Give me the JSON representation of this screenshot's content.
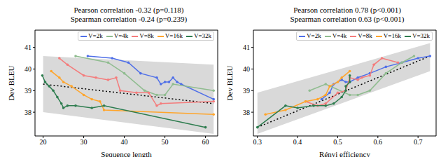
{
  "chart_data": [
    {
      "type": "line",
      "title": "Pearson correlation -0.32 (p=0.118)",
      "subtitle": "Spearman correlation -0.24 (p=0.239)",
      "x_label": "Sequence length",
      "y_label": "Dev BLEU",
      "xlim": [
        18,
        63
      ],
      "xticks": [
        20,
        30,
        40,
        50,
        60
      ],
      "ylim": [
        36.9,
        41.8
      ],
      "yticks": [
        38,
        39,
        40,
        41
      ],
      "grid": false,
      "legend": "upper right",
      "marker": "circle",
      "band": {
        "color": "#d9d9d9",
        "x": [
          20,
          62
        ],
        "lower": [
          38.0,
          37.0
        ],
        "upper": [
          40.6,
          40.2
        ]
      },
      "fit": {
        "color": "#000000",
        "line_style": "dotted",
        "x": [
          20,
          62
        ],
        "values": [
          39.3,
          38.4
        ]
      },
      "series": [
        {
          "name": "V=2k",
          "color": "#4f6fe8",
          "x": [
            31,
            37,
            41,
            44,
            48,
            49,
            50,
            51,
            52,
            53,
            54,
            62
          ],
          "values": [
            40.6,
            40.5,
            40.3,
            39.8,
            39.6,
            39.3,
            39.4,
            39.4,
            39.6,
            39.4,
            39.3,
            38.6
          ]
        },
        {
          "name": "V=4k",
          "color": "#8fbc8f",
          "x": [
            28,
            36,
            40,
            45,
            48,
            50,
            52,
            62
          ],
          "values": [
            40.6,
            40.3,
            39.8,
            39.0,
            38.8,
            38.8,
            39.3,
            39.0
          ]
        },
        {
          "name": "V=8k",
          "color": "#f47c7c",
          "x": [
            24,
            26,
            30,
            33,
            36,
            38,
            39,
            43,
            46,
            48,
            49,
            62
          ],
          "values": [
            40.5,
            40.2,
            39.7,
            39.6,
            39.5,
            39.6,
            39.0,
            38.9,
            38.9,
            38.3,
            38.4,
            38.5
          ]
        },
        {
          "name": "V=16k",
          "color": "#ffa52b",
          "x": [
            22,
            24,
            25,
            27,
            30,
            32,
            34,
            35,
            62
          ],
          "values": [
            39.9,
            39.6,
            39.4,
            39.2,
            38.8,
            38.6,
            38.5,
            38.1,
            37.9
          ]
        },
        {
          "name": "V=32k",
          "color": "#2e7d4f",
          "x": [
            19.8,
            20.5,
            21.5,
            22.5,
            23.5,
            24.5,
            25,
            26,
            28,
            32,
            35,
            60
          ],
          "values": [
            39.7,
            39.4,
            39.2,
            39.0,
            38.7,
            38.4,
            38.2,
            38.3,
            38.3,
            38.2,
            38.3,
            37.3
          ]
        }
      ]
    },
    {
      "type": "line",
      "title": "Pearson correlation 0.78 (p<0.001)",
      "subtitle": "Spearman correlation 0.63 (p<0.001)",
      "x_label": "Rényi efficiency",
      "y_label": "Dev BLEU",
      "xlim": [
        0.29,
        0.745
      ],
      "xticks": [
        0.3,
        0.4,
        0.5,
        0.6,
        0.7
      ],
      "ylim": [
        36.9,
        41.8
      ],
      "yticks": [
        38,
        39,
        40,
        41
      ],
      "grid": false,
      "legend": "upper right",
      "marker": "circle",
      "band": {
        "color": "#d9d9d9",
        "x": [
          0.3,
          0.73
        ],
        "lower": [
          37.0,
          39.9
        ],
        "upper": [
          38.9,
          41.2
        ]
      },
      "fit": {
        "color": "#000000",
        "line_style": "dotted",
        "x": [
          0.3,
          0.73
        ],
        "values": [
          37.3,
          40.6
        ]
      },
      "series": [
        {
          "name": "V=2k",
          "color": "#4f6fe8",
          "x": [
            0.46,
            0.48,
            0.49,
            0.51,
            0.52,
            0.53,
            0.55,
            0.58,
            0.62,
            0.66,
            0.7,
            0.73
          ],
          "values": [
            38.6,
            38.9,
            39.3,
            39.5,
            39.4,
            39.4,
            39.6,
            39.8,
            40.1,
            40.3,
            40.5,
            40.6
          ]
        },
        {
          "name": "V=4k",
          "color": "#8fbc8f",
          "x": [
            0.43,
            0.47,
            0.53,
            0.55,
            0.58,
            0.62,
            0.66,
            0.69
          ],
          "values": [
            39.0,
            39.3,
            38.8,
            38.8,
            39.0,
            39.8,
            40.3,
            40.6
          ]
        },
        {
          "name": "V=8k",
          "color": "#f47c7c",
          "x": [
            0.42,
            0.45,
            0.47,
            0.5,
            0.52,
            0.53,
            0.55,
            0.56,
            0.58,
            0.59,
            0.61,
            0.65
          ],
          "values": [
            38.5,
            38.3,
            38.4,
            38.9,
            39.0,
            39.6,
            39.5,
            39.6,
            39.7,
            40.2,
            40.5,
            40.3
          ]
        },
        {
          "name": "V=16k",
          "color": "#ffa52b",
          "x": [
            0.32,
            0.37,
            0.42,
            0.45,
            0.47,
            0.48,
            0.5,
            0.51,
            0.53
          ],
          "values": [
            37.9,
            38.1,
            38.5,
            38.6,
            38.8,
            39.2,
            39.4,
            39.6,
            39.9
          ]
        },
        {
          "name": "V=32k",
          "color": "#2e7d4f",
          "x": [
            0.3,
            0.37,
            0.4,
            0.44,
            0.47,
            0.49,
            0.51,
            0.52,
            0.52,
            0.53,
            0.53
          ],
          "values": [
            37.3,
            38.3,
            38.2,
            38.3,
            38.3,
            38.4,
            38.7,
            39.0,
            39.2,
            39.4,
            39.7
          ]
        }
      ]
    }
  ]
}
